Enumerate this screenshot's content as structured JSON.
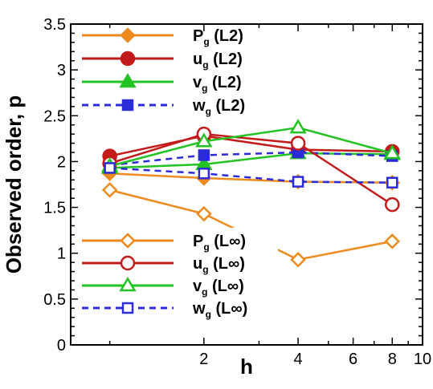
{
  "chart_data": {
    "type": "line",
    "title": "",
    "xlabel": "h",
    "ylabel": "Observed order, p",
    "xscale": "log",
    "xlim": [
      0.75,
      10
    ],
    "ylim": [
      0,
      3.5
    ],
    "x": [
      1,
      2,
      4,
      8
    ],
    "xticks": [
      2,
      4,
      6,
      8,
      10
    ],
    "xtick_labels": [
      "2",
      "4",
      "6",
      "8",
      "10"
    ],
    "yticks": [
      0,
      0.5,
      1,
      1.5,
      2,
      2.5,
      3,
      3.5
    ],
    "ytick_labels": [
      "0",
      "0.5",
      "1",
      "1.5",
      "2",
      "2.5",
      "3",
      "3.5"
    ],
    "grid": false,
    "legend_position": "top-left",
    "series": [
      {
        "name": "P",
        "sub": "g",
        "norm": " (L2)",
        "values": [
          1.87,
          1.82,
          1.78,
          1.77
        ],
        "color": "#ee8a1e",
        "marker": "diamond",
        "filled": true,
        "dash": false
      },
      {
        "name": "u",
        "sub": "g",
        "norm": " (L2)",
        "values": [
          2.06,
          2.28,
          2.13,
          2.11
        ],
        "color": "#c31a1a",
        "marker": "circle",
        "filled": true,
        "dash": false
      },
      {
        "name": "v",
        "sub": "g",
        "norm": " (L2)",
        "values": [
          1.93,
          1.97,
          2.09,
          2.08
        ],
        "color": "#22c322",
        "marker": "triangle",
        "filled": true,
        "dash": false
      },
      {
        "name": "w",
        "sub": "g",
        "norm": " (L2)",
        "values": [
          1.96,
          2.07,
          2.1,
          2.06
        ],
        "color": "#2b2bd8",
        "marker": "square",
        "filled": true,
        "dash": true
      },
      {
        "name": "P",
        "sub": "g",
        "norm": " (L∞)",
        "values": [
          1.69,
          1.43,
          0.93,
          1.13
        ],
        "color": "#ee8a1e",
        "marker": "diamond",
        "filled": false,
        "dash": false
      },
      {
        "name": "u",
        "sub": "g",
        "norm": " (L∞)",
        "values": [
          1.98,
          2.3,
          2.2,
          1.53
        ],
        "color": "#c31a1a",
        "marker": "circle",
        "filled": false,
        "dash": false
      },
      {
        "name": "v",
        "sub": "g",
        "norm": " (L∞)",
        "values": [
          1.95,
          2.22,
          2.37,
          2.09
        ],
        "color": "#22c322",
        "marker": "triangle",
        "filled": false,
        "dash": false
      },
      {
        "name": "w",
        "sub": "g",
        "norm": " (L∞)",
        "values": [
          1.93,
          1.87,
          1.78,
          1.77
        ],
        "color": "#2b2bd8",
        "marker": "square",
        "filled": false,
        "dash": true
      }
    ]
  }
}
